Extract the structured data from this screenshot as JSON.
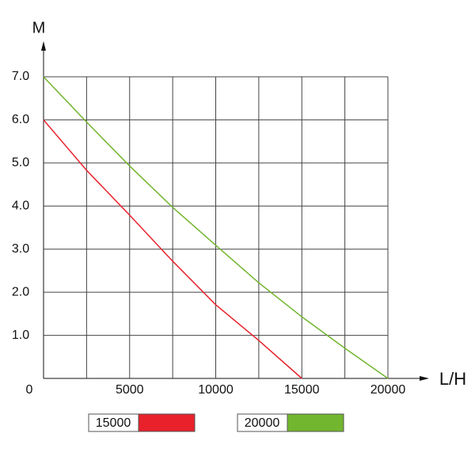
{
  "chart_data": {
    "type": "line",
    "y_label": "M",
    "x_label": "L/H",
    "x": [
      0,
      2500,
      5000,
      7500,
      10000,
      12500,
      15000,
      17500,
      20000
    ],
    "series": [
      {
        "name": "15000",
        "color": "#e8212b",
        "values": [
          6.0,
          4.83,
          3.79,
          2.72,
          1.71,
          0.88,
          0,
          null,
          null
        ]
      },
      {
        "name": "20000",
        "color": "#72b52e",
        "values": [
          7.0,
          5.95,
          4.93,
          3.97,
          3.09,
          2.22,
          1.43,
          0.7,
          0
        ]
      }
    ],
    "xlim": [
      0,
      20000
    ],
    "ylim": [
      0,
      7
    ],
    "xticks": [
      0,
      5000,
      10000,
      15000,
      20000
    ],
    "yticks": [
      {
        "value": 1,
        "label": "1.0"
      },
      {
        "value": 2,
        "label": "2.0"
      },
      {
        "value": 3,
        "label": "3.0"
      },
      {
        "value": 4,
        "label": "4.0"
      },
      {
        "value": 5,
        "label": "5.0"
      },
      {
        "value": 6,
        "label": "6.0"
      },
      {
        "value": 7,
        "label": "7.0"
      }
    ],
    "grid": true
  }
}
